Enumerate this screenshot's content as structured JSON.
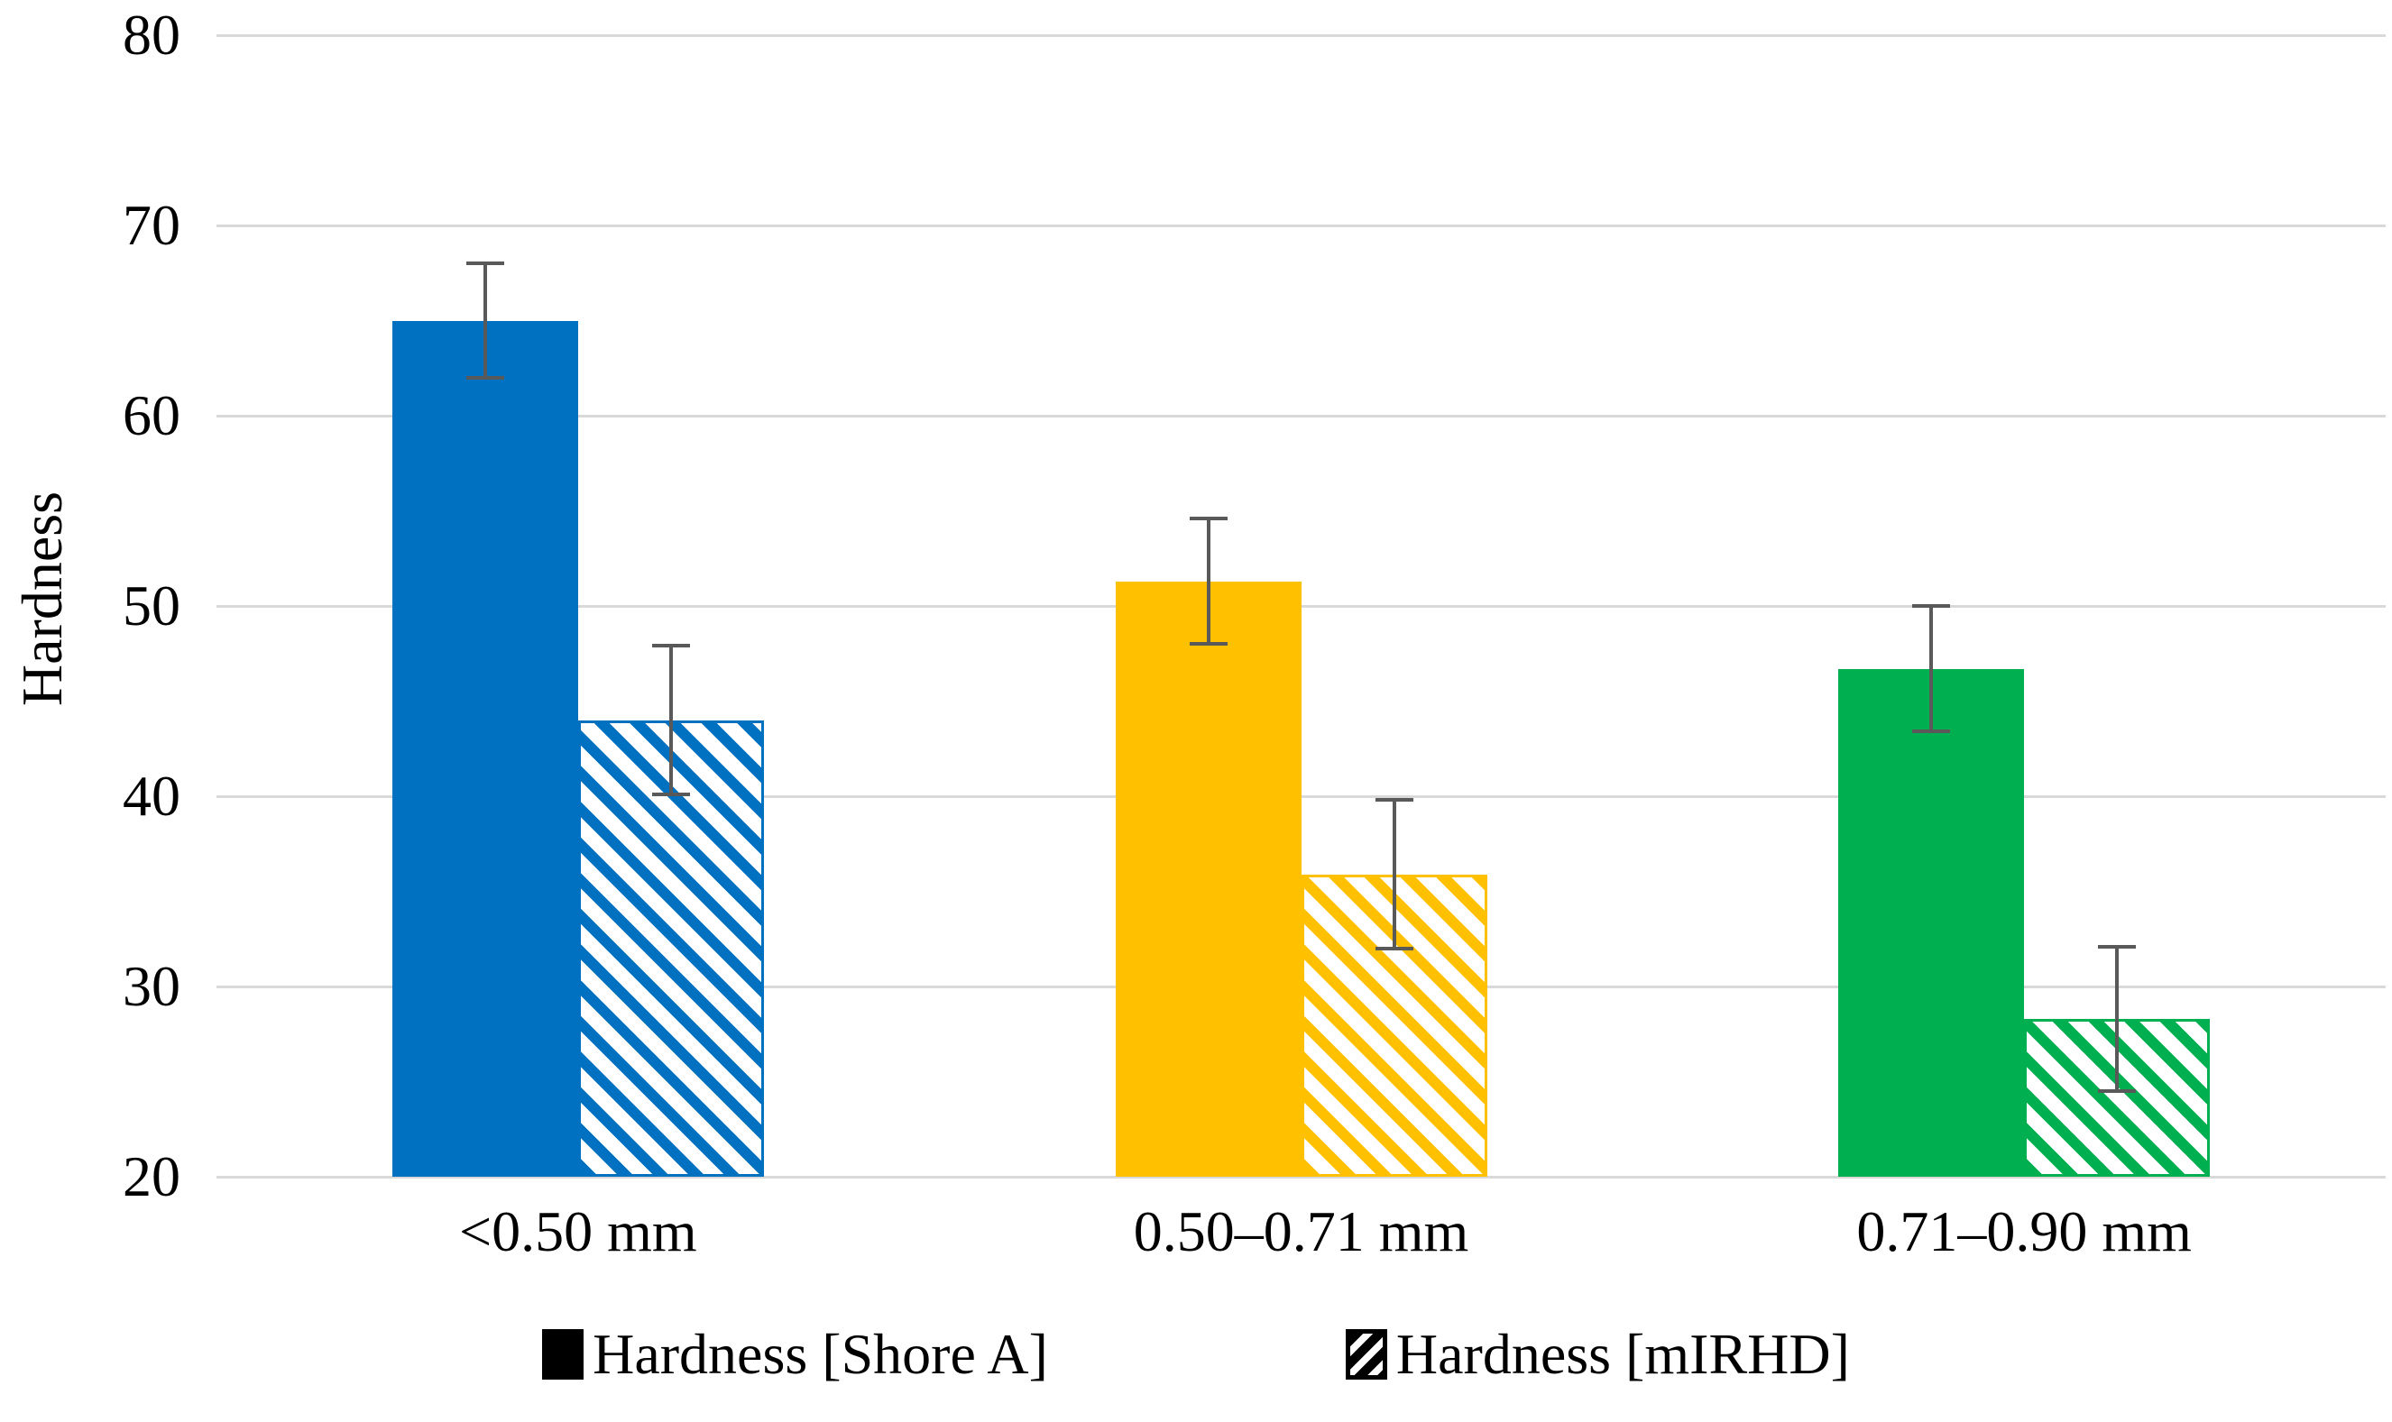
{
  "chart_data": {
    "type": "bar",
    "title": "",
    "ylabel": "Hardness",
    "xlabel": "",
    "ylim": [
      20,
      80
    ],
    "yticks": [
      20,
      30,
      40,
      50,
      60,
      70,
      80
    ],
    "grid": true,
    "legend_position": "bottom",
    "categories": [
      "<0.50 mm",
      "0.50–0.71 mm",
      "0.71–0.90 mm"
    ],
    "group_colors": [
      "#0070C0",
      "#FFC000",
      "#00B050"
    ],
    "gridline_color": "#D9D9D9",
    "error_bar_color": "#595959",
    "series": [
      {
        "name": "Hardness [Shore A]",
        "pattern": "solid",
        "values": [
          65.0,
          51.3,
          46.7
        ],
        "error_low": [
          62.0,
          48.0,
          43.4
        ],
        "error_high": [
          68.0,
          54.6,
          50.0
        ]
      },
      {
        "name": "Hardness [mIRHD]",
        "pattern": "hatched",
        "values": [
          44.0,
          35.9,
          28.3
        ],
        "error_low": [
          40.1,
          32.0,
          24.5
        ],
        "error_high": [
          47.9,
          39.8,
          32.1
        ]
      }
    ]
  }
}
